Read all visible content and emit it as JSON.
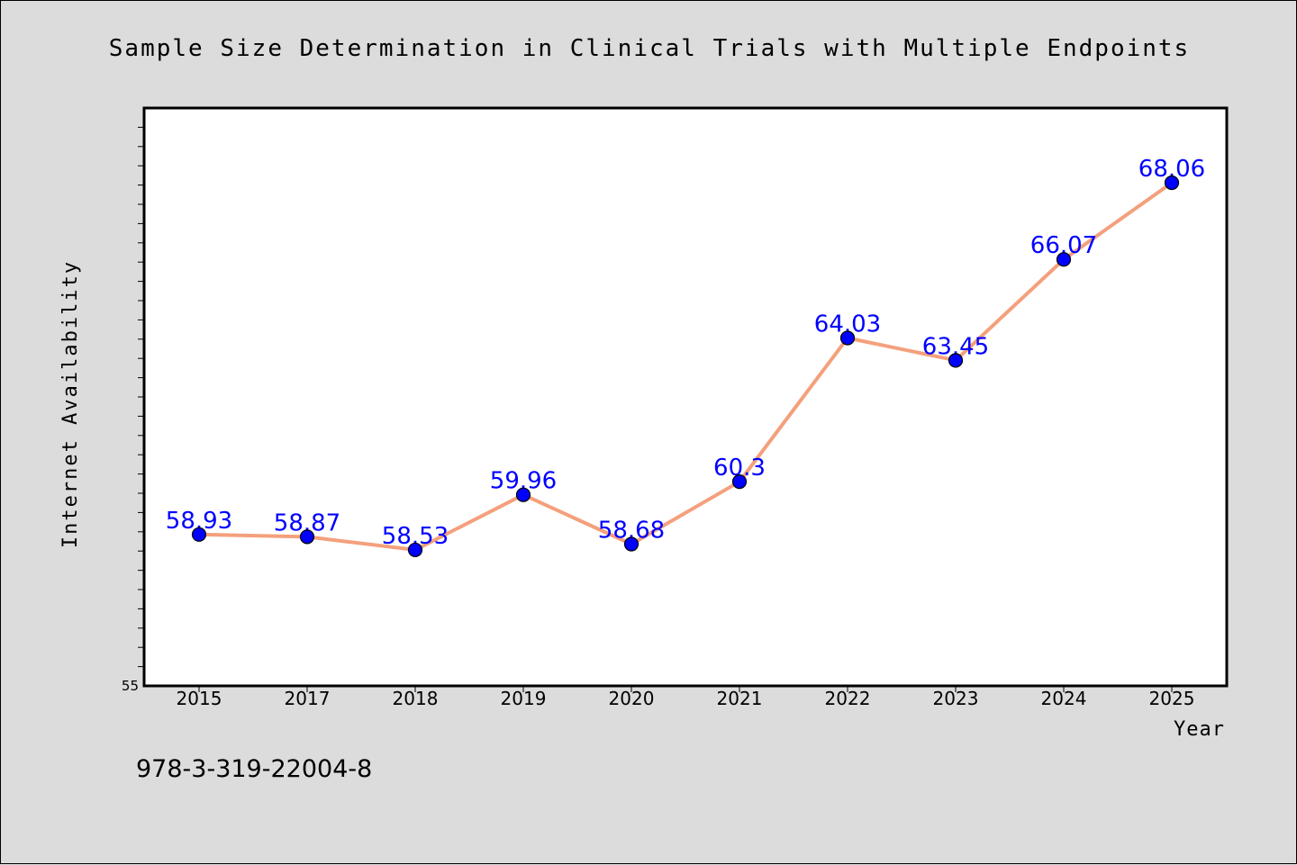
{
  "figure": {
    "background": "#dcdcdc",
    "footer_text": "978-3-319-22004-8"
  },
  "chart_data": {
    "type": "line",
    "title": "Sample Size Determination in Clinical Trials with Multiple Endpoints",
    "xlabel": "Year",
    "ylabel": "Internet Availability",
    "categories": [
      "2015",
      "2017",
      "2018",
      "2019",
      "2020",
      "2021",
      "2022",
      "2023",
      "2024",
      "2025"
    ],
    "series": [
      {
        "values": [
          58.93,
          58.87,
          58.53,
          59.96,
          58.68,
          60.3,
          64.03,
          63.45,
          66.07,
          68.06
        ],
        "data_labels": [
          "58.93",
          "58.87",
          "58.53",
          "59.96",
          "58.68",
          "60.3",
          "64.03",
          "63.45",
          "66.07",
          "68.06"
        ],
        "line_color": "#f4a07c",
        "marker_color": "#0000ff",
        "label_color": "#0000ff"
      }
    ],
    "ytick_label": "55",
    "ylim": [
      55,
      70
    ],
    "grid": false,
    "legend": "none"
  }
}
